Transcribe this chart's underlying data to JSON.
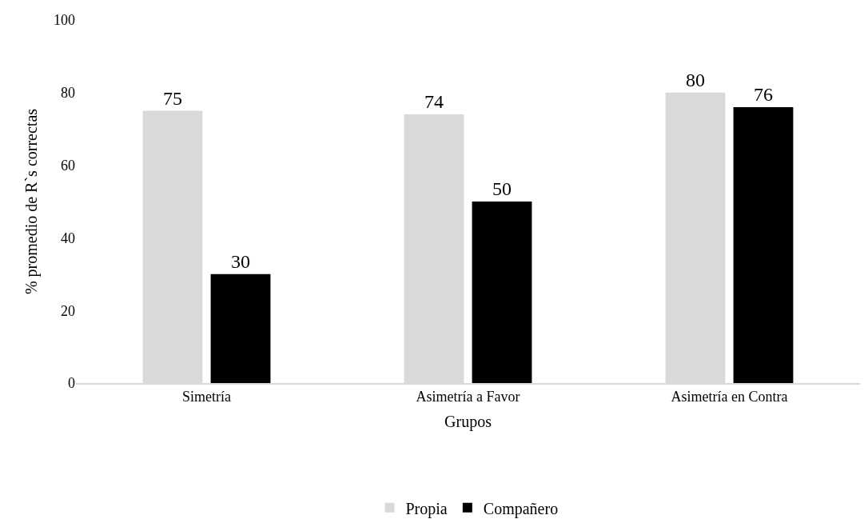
{
  "chart_data": {
    "type": "bar",
    "xlabel": "Grupos",
    "ylabel": "% promedio de R`s correctas",
    "categories": [
      "Simetría",
      "Asimetría a Favor",
      "Asimetría en Contra"
    ],
    "series": [
      {
        "name": "Propia",
        "color": "#d9d9d9",
        "values": [
          75,
          74,
          80
        ]
      },
      {
        "name": "Compañero",
        "color": "#000000",
        "values": [
          30,
          50,
          76
        ]
      }
    ],
    "ylim": [
      0,
      100
    ],
    "yticks": [
      0,
      20,
      40,
      60,
      80,
      100
    ],
    "legend": "bottom",
    "data_labels": true
  }
}
